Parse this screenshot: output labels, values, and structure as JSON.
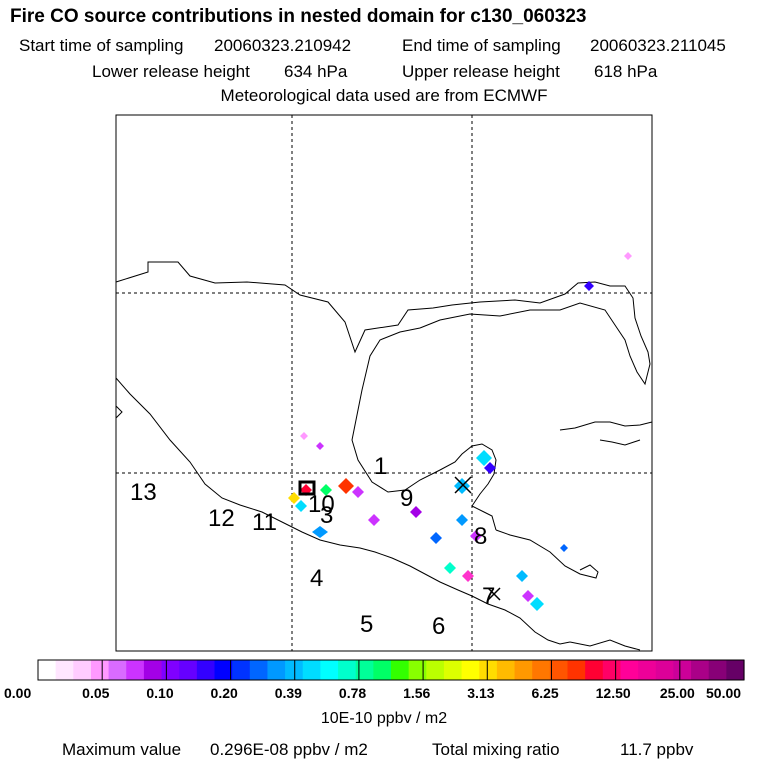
{
  "header": {
    "title": "Fire CO source contributions in nested domain for c130_060323",
    "start_label": "Start time of sampling",
    "start_value": "20060323.210942",
    "end_label": "End time of sampling",
    "end_value": "20060323.211045",
    "lower_label": "Lower release height",
    "lower_value": "634 hPa",
    "upper_label": "Upper release height",
    "upper_value": "618 hPa",
    "meteo": "Meteorological data used are from ECMWF"
  },
  "map": {
    "track_labels": [
      "1",
      "9",
      "10",
      "3",
      "8",
      "13",
      "12",
      "11",
      "4",
      "5",
      "6",
      "7"
    ]
  },
  "colorbar": {
    "ticks": [
      "0.00",
      "0.05",
      "0.10",
      "0.20",
      "0.39",
      "0.78",
      "1.56",
      "3.13",
      "6.25",
      "12.50",
      "25.00",
      "50.00"
    ],
    "units": "10E-10 ppbv / m2",
    "colors": [
      "#ffffff",
      "#ffe6ff",
      "#ffccff",
      "#ff99ff",
      "#d96bff",
      "#cc33ff",
      "#a300e6",
      "#8000ff",
      "#6600ff",
      "#3300ff",
      "#0000ff",
      "#0033ff",
      "#0066ff",
      "#0099ff",
      "#00bbff",
      "#00ddff",
      "#00ffff",
      "#00ffcc",
      "#00ff99",
      "#00ff66",
      "#33ff00",
      "#88ff00",
      "#bbff00",
      "#ddff00",
      "#ffff00",
      "#ffdd00",
      "#ffbb00",
      "#ff9900",
      "#ff7700",
      "#ff5500",
      "#ff3300",
      "#ff0033",
      "#ff0066",
      "#ff0099",
      "#ee0099",
      "#dd0099",
      "#cc0099",
      "#aa0088",
      "#880077",
      "#660066"
    ]
  },
  "footer": {
    "max_label": "Maximum value",
    "max_value": "0.296E-08 ppbv / m2",
    "total_label": "Total mixing ratio",
    "total_value": "11.7 ppbv"
  }
}
